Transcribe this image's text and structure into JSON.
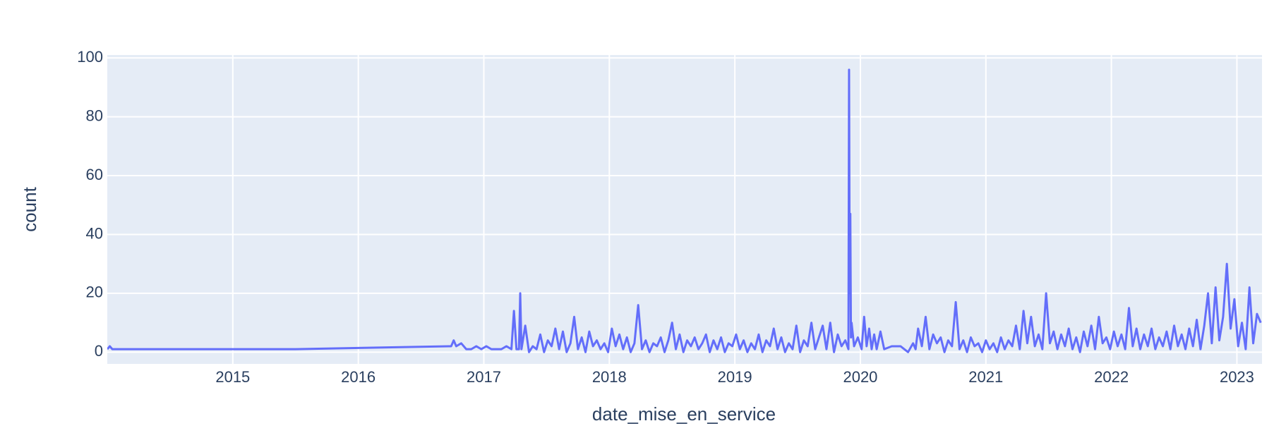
{
  "chart_data": {
    "type": "line",
    "x_label": "date_mise_en_service",
    "y_label": "count",
    "color": "#636efa",
    "grid": true,
    "background": "#e5ecf6",
    "xlim": [
      2014.0,
      2023.2
    ],
    "xticks": [
      2015,
      2016,
      2017,
      2018,
      2019,
      2020,
      2021,
      2022,
      2023
    ],
    "ylim": [
      -4,
      101
    ],
    "yticks": [
      0,
      20,
      40,
      60,
      80,
      100
    ],
    "x": [
      2014.0,
      2014.02,
      2014.04,
      2014.06,
      2015.5,
      2016.72,
      2016.74,
      2016.76,
      2016.78,
      2016.82,
      2016.86,
      2016.9,
      2016.94,
      2016.98,
      2017.02,
      2017.06,
      2017.1,
      2017.14,
      2017.18,
      2017.22,
      2017.24,
      2017.26,
      2017.28,
      2017.29,
      2017.3,
      2017.33,
      2017.36,
      2017.39,
      2017.42,
      2017.45,
      2017.48,
      2017.51,
      2017.54,
      2017.57,
      2017.6,
      2017.63,
      2017.66,
      2017.69,
      2017.72,
      2017.75,
      2017.78,
      2017.81,
      2017.84,
      2017.87,
      2017.9,
      2017.93,
      2017.96,
      2017.99,
      2018.02,
      2018.05,
      2018.08,
      2018.11,
      2018.14,
      2018.17,
      2018.2,
      2018.23,
      2018.26,
      2018.29,
      2018.32,
      2018.35,
      2018.38,
      2018.41,
      2018.44,
      2018.47,
      2018.5,
      2018.53,
      2018.56,
      2018.59,
      2018.62,
      2018.65,
      2018.68,
      2018.71,
      2018.74,
      2018.77,
      2018.8,
      2018.83,
      2018.86,
      2018.89,
      2018.92,
      2018.95,
      2018.98,
      2019.01,
      2019.04,
      2019.07,
      2019.1,
      2019.13,
      2019.16,
      2019.19,
      2019.22,
      2019.25,
      2019.28,
      2019.31,
      2019.34,
      2019.37,
      2019.4,
      2019.43,
      2019.46,
      2019.49,
      2019.52,
      2019.55,
      2019.58,
      2019.61,
      2019.64,
      2019.67,
      2019.7,
      2019.73,
      2019.76,
      2019.79,
      2019.82,
      2019.85,
      2019.88,
      2019.905,
      2019.91,
      2019.915,
      2019.92,
      2019.925,
      2019.93,
      2019.95,
      2019.98,
      2020.01,
      2020.03,
      2020.05,
      2020.07,
      2020.09,
      2020.11,
      2020.13,
      2020.16,
      2020.19,
      2020.25,
      2020.32,
      2020.38,
      2020.42,
      2020.44,
      2020.46,
      2020.49,
      2020.52,
      2020.55,
      2020.58,
      2020.61,
      2020.64,
      2020.67,
      2020.7,
      2020.73,
      2020.76,
      2020.79,
      2020.82,
      2020.85,
      2020.88,
      2020.91,
      2020.94,
      2020.97,
      2021.0,
      2021.03,
      2021.06,
      2021.09,
      2021.12,
      2021.15,
      2021.18,
      2021.21,
      2021.24,
      2021.27,
      2021.3,
      2021.33,
      2021.36,
      2021.39,
      2021.42,
      2021.45,
      2021.48,
      2021.51,
      2021.54,
      2021.57,
      2021.6,
      2021.63,
      2021.66,
      2021.69,
      2021.72,
      2021.75,
      2021.78,
      2021.81,
      2021.84,
      2021.87,
      2021.9,
      2021.93,
      2021.96,
      2021.99,
      2022.02,
      2022.05,
      2022.08,
      2022.11,
      2022.14,
      2022.17,
      2022.2,
      2022.23,
      2022.26,
      2022.29,
      2022.32,
      2022.35,
      2022.38,
      2022.41,
      2022.44,
      2022.47,
      2022.5,
      2022.53,
      2022.56,
      2022.59,
      2022.62,
      2022.65,
      2022.68,
      2022.71,
      2022.74,
      2022.77,
      2022.8,
      2022.83,
      2022.86,
      2022.89,
      2022.92,
      2022.95,
      2022.98,
      2023.01,
      2023.04,
      2023.07,
      2023.1,
      2023.13,
      2023.16,
      2023.19
    ],
    "values": [
      1,
      2,
      1,
      1,
      1,
      2,
      2,
      4,
      2,
      3,
      1,
      1,
      2,
      1,
      2,
      1,
      1,
      1,
      2,
      1,
      14,
      1,
      1,
      20,
      1,
      9,
      0,
      2,
      1,
      6,
      0,
      4,
      2,
      8,
      1,
      7,
      0,
      3,
      12,
      1,
      5,
      0,
      7,
      2,
      4,
      1,
      3,
      0,
      8,
      2,
      6,
      1,
      5,
      0,
      3,
      16,
      1,
      4,
      0,
      3,
      2,
      5,
      0,
      4,
      10,
      1,
      6,
      0,
      4,
      2,
      5,
      1,
      3,
      6,
      0,
      4,
      1,
      5,
      0,
      3,
      2,
      6,
      1,
      4,
      0,
      3,
      1,
      6,
      0,
      4,
      2,
      8,
      1,
      5,
      0,
      3,
      1,
      9,
      0,
      4,
      2,
      10,
      1,
      5,
      9,
      1,
      10,
      0,
      6,
      2,
      4,
      1,
      96,
      20,
      47,
      5,
      10,
      2,
      5,
      1,
      12,
      2,
      8,
      1,
      6,
      1,
      7,
      1,
      2,
      2,
      0,
      3,
      1,
      8,
      2,
      12,
      1,
      6,
      3,
      5,
      0,
      4,
      2,
      17,
      1,
      4,
      0,
      5,
      2,
      3,
      0,
      4,
      1,
      3,
      0,
      5,
      1,
      4,
      2,
      9,
      1,
      14,
      3,
      12,
      2,
      6,
      1,
      20,
      3,
      7,
      1,
      6,
      2,
      8,
      1,
      5,
      0,
      7,
      2,
      9,
      1,
      12,
      3,
      5,
      1,
      7,
      2,
      6,
      1,
      15,
      2,
      8,
      1,
      6,
      2,
      8,
      1,
      5,
      2,
      7,
      1,
      9,
      2,
      6,
      1,
      8,
      2,
      11,
      1,
      9,
      20,
      3,
      22,
      4,
      12,
      30,
      8,
      18,
      2,
      10,
      1,
      22,
      3,
      13,
      10
    ]
  }
}
